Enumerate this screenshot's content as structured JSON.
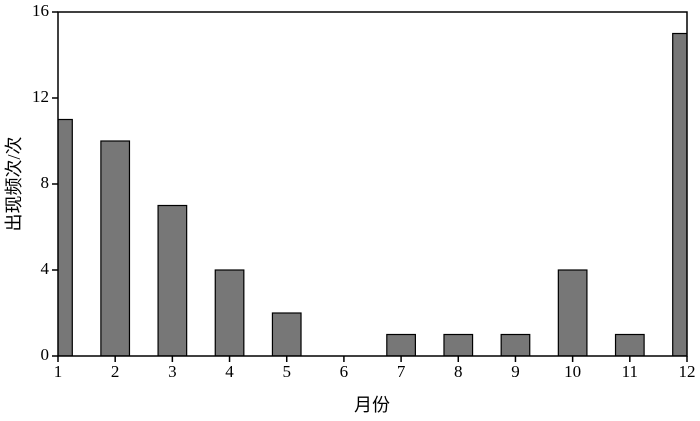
{
  "chart_data": {
    "type": "bar",
    "x_label": "月份",
    "y_label": "出现频次/次",
    "x": [
      1,
      2,
      3,
      4,
      5,
      6,
      7,
      8,
      9,
      10,
      11,
      12
    ],
    "values": [
      11,
      10,
      7,
      4,
      2,
      0,
      1,
      1,
      1,
      4,
      1,
      15
    ],
    "color": "#777777",
    "xlim": [
      1,
      12
    ],
    "xticks": [
      1,
      2,
      3,
      4,
      5,
      6,
      7,
      8,
      9,
      10,
      11,
      12
    ],
    "ylim": [
      0,
      16
    ],
    "yticks": [
      0,
      4,
      8,
      12,
      16
    ],
    "grid": false
  }
}
